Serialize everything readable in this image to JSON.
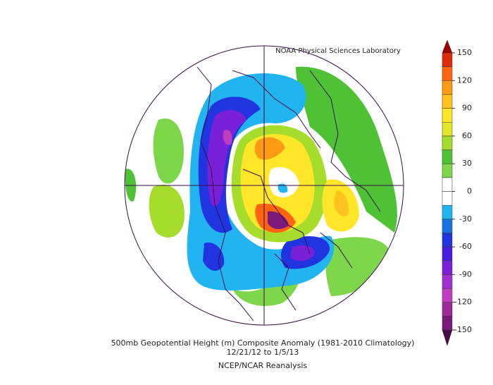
{
  "source": "NOAA Physical Sciences Laboratory",
  "title": "500mb Geopotential Height (m) Composite Anomaly (1981-2010 Climatology)",
  "dates": "12/21/12  to 1/5/13",
  "dataset": "NCEP/NCAR Reanalysis",
  "colorbar": {
    "ticks": [
      -150,
      -120,
      -90,
      -60,
      -30,
      0,
      30,
      60,
      90,
      120,
      150
    ],
    "colors": [
      "#7a1a7a",
      "#9a2a9a",
      "#c03cc0",
      "#a22ed2",
      "#7a20d8",
      "#4a1ee0",
      "#2034e0",
      "#1a72e0",
      "#22b4f0",
      "#ffffff",
      "#ffffff",
      "#7ed64a",
      "#4ec234",
      "#a6dc2c",
      "#e2e628",
      "#ffe628",
      "#ffc21e",
      "#ff9a14",
      "#ff6410",
      "#e02a0a"
    ],
    "over_color": "#a00000",
    "under_color": "#4a0a4a"
  }
}
